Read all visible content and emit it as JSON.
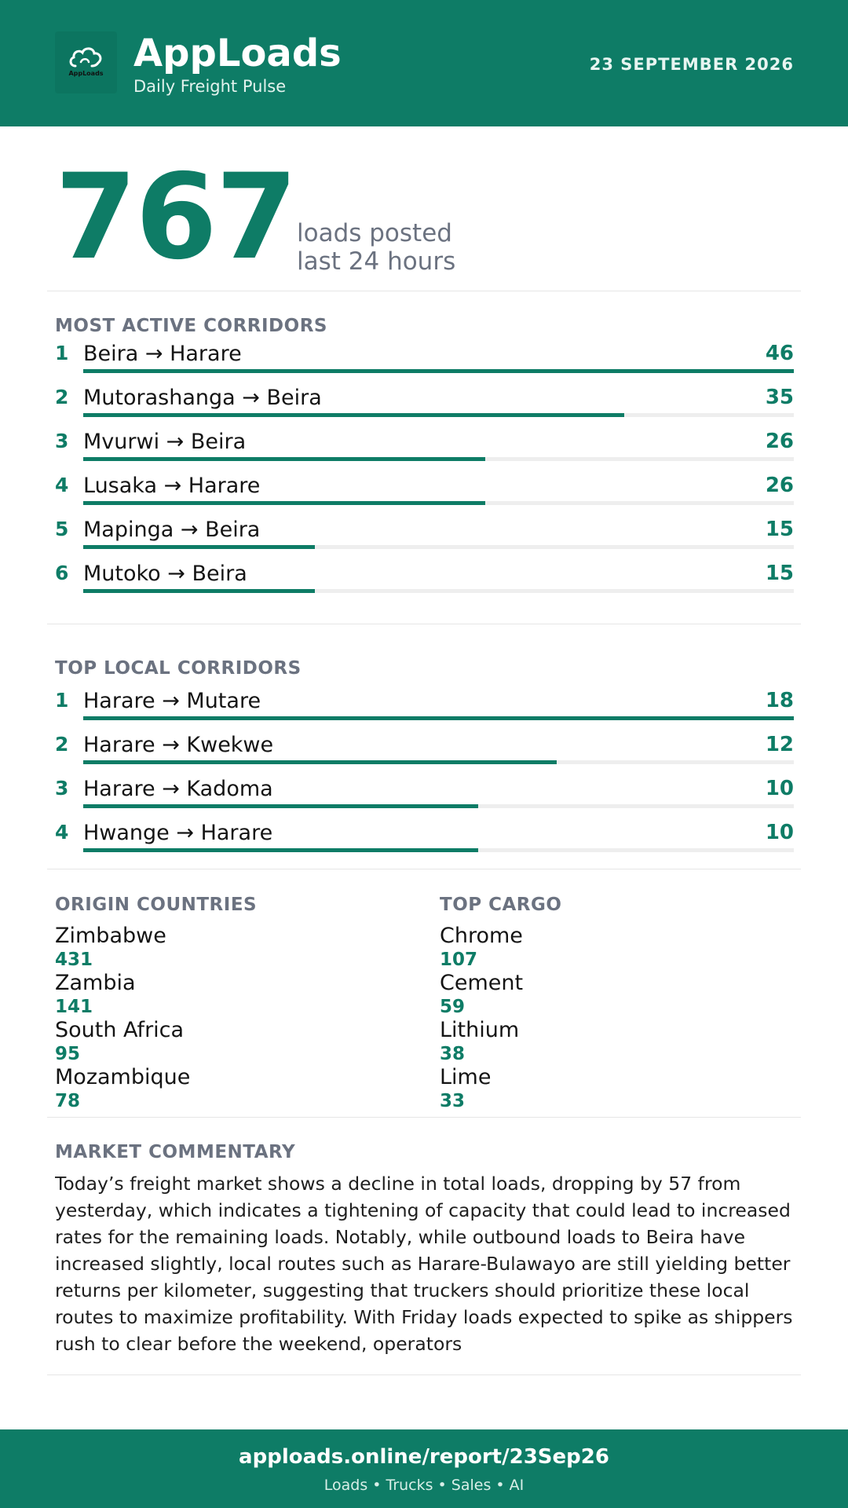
{
  "header": {
    "brand": "AppLoads",
    "subtitle": "Daily Freight Pulse",
    "date": "23 SEPTEMBER 2026",
    "logo_text": "AppLoads",
    "logo_icon": "cloud-icon"
  },
  "hero": {
    "value": "767",
    "label_line1": "loads posted",
    "label_line2": "last 24 hours"
  },
  "active_corridors": {
    "title": "MOST ACTIVE CORRIDORS",
    "max": 46,
    "rows": [
      {
        "rank": "1",
        "route": "Beira → Harare",
        "count": 46
      },
      {
        "rank": "2",
        "route": "Mutorashanga → Beira",
        "count": 35
      },
      {
        "rank": "3",
        "route": "Mvurwi → Beira",
        "count": 26
      },
      {
        "rank": "4",
        "route": "Lusaka → Harare",
        "count": 26
      },
      {
        "rank": "5",
        "route": "Mapinga → Beira",
        "count": 15
      },
      {
        "rank": "6",
        "route": "Mutoko → Beira",
        "count": 15
      }
    ]
  },
  "local_corridors": {
    "title": "TOP LOCAL CORRIDORS",
    "max": 18,
    "rows": [
      {
        "rank": "1",
        "route": "Harare → Mutare",
        "count": 18
      },
      {
        "rank": "2",
        "route": "Harare → Kwekwe",
        "count": 12
      },
      {
        "rank": "3",
        "route": "Harare → Kadoma",
        "count": 10
      },
      {
        "rank": "4",
        "route": "Hwange → Harare",
        "count": 10
      }
    ]
  },
  "origin_countries": {
    "title": "ORIGIN COUNTRIES",
    "items": [
      {
        "name": "Zimbabwe",
        "value": "431"
      },
      {
        "name": "Zambia",
        "value": "141"
      },
      {
        "name": "South Africa",
        "value": "95"
      },
      {
        "name": "Mozambique",
        "value": "78"
      }
    ]
  },
  "top_cargo": {
    "title": "TOP CARGO",
    "items": [
      {
        "name": "Chrome",
        "value": "107"
      },
      {
        "name": "Cement",
        "value": "59"
      },
      {
        "name": "Lithium",
        "value": "38"
      },
      {
        "name": "Lime",
        "value": "33"
      }
    ]
  },
  "commentary": {
    "title": "MARKET COMMENTARY",
    "text": "Today’s freight market shows a decline in total loads, dropping by 57 from yesterday, which indicates a tightening of capacity that could lead to increased rates for the remaining loads. Notably, while outbound loads to Beira have increased slightly, local routes such as Harare-Bulawayo are still yielding better returns per kilometer, suggesting that truckers should prioritize these local routes to maximize profitability. With Friday loads expected to spike as shippers rush to clear before the weekend, operators"
  },
  "footer": {
    "url": "apploads.online/report/23Sep26",
    "tagline": "Loads • Trucks • Sales • AI"
  },
  "colors": {
    "brand": "#0e7c66",
    "muted": "#6b7280",
    "track": "#eeeeee"
  }
}
